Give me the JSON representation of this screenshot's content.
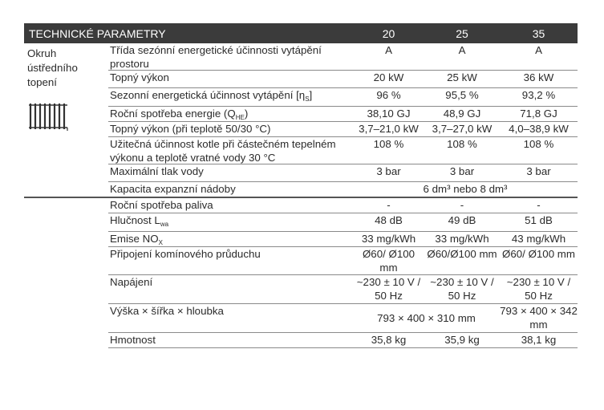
{
  "header": {
    "title": "TECHNICKÉ PARAMETRY",
    "columns": [
      "20",
      "25",
      "35"
    ]
  },
  "group1": {
    "label": "Okruh ústředního topení",
    "icon": "radiator-icon"
  },
  "rows": [
    {
      "label": "Třída sezónní energetické účinnosti vytápění prostoru",
      "values": [
        "A",
        "A",
        "A"
      ]
    },
    {
      "label": "Topný výkon",
      "values": [
        "20 kW",
        "25 kW",
        "36 kW"
      ]
    },
    {
      "label": "Sezonní energetická účinnost vytápění [η",
      "sub": "S",
      "after": "]",
      "values": [
        "96 %",
        "95,5 %",
        "93,2 %"
      ]
    },
    {
      "label": "Roční spotřeba energie (Q",
      "sub": "HE",
      "after": ")",
      "values": [
        "38,10 GJ",
        "48,9 GJ",
        "71,8 GJ"
      ]
    },
    {
      "label": "Topný výkon (při teplotě 50/30 °C)",
      "values": [
        "3,7–21,0 kW",
        "3,7–27,0 kW",
        "4,0–38,9 kW"
      ]
    },
    {
      "label": "Užitečná účinnost kotle při částečném tepelném výkonu a teplotě vratné vody 30 °C",
      "values": [
        "108 %",
        "108 %",
        "108 %"
      ]
    },
    {
      "label": "Maximální tlak vody",
      "values": [
        "3 bar",
        "3 bar",
        "3 bar"
      ]
    },
    {
      "label": "Kapacita expanzní nádoby",
      "span": "6 dm³ nebo 8 dm³"
    },
    {
      "label": "Roční spotřeba paliva",
      "values": [
        "-",
        "-",
        "-"
      ]
    },
    {
      "label": "Hlučnost L",
      "sub": "wa",
      "after": "",
      "values": [
        "48 dB",
        "49 dB",
        "51 dB"
      ]
    },
    {
      "label": "Emise NO",
      "sub": "X",
      "after": "",
      "values": [
        "33 mg/kWh",
        "33 mg/kWh",
        "43 mg/kWh"
      ]
    },
    {
      "label": "Připojení komínového průduchu",
      "values": [
        "Ø60/ Ø100 mm",
        "Ø60/Ø100 mm",
        "Ø60/ Ø100 mm"
      ]
    },
    {
      "label": "Napájení",
      "values": [
        "~230 ± 10 V / 50 Hz",
        "~230 ± 10 V / 50 Hz",
        "~230 ± 10 V / 50 Hz"
      ]
    },
    {
      "label": "Výška × šířka × hloubka",
      "span2": "793 × 400 × 310 mm",
      "values": [
        null,
        null,
        "793 × 400 × 342 mm"
      ]
    },
    {
      "label": "Hmotnost",
      "values": [
        "35,8 kg",
        "35,9 kg",
        "38,1 kg"
      ]
    }
  ]
}
